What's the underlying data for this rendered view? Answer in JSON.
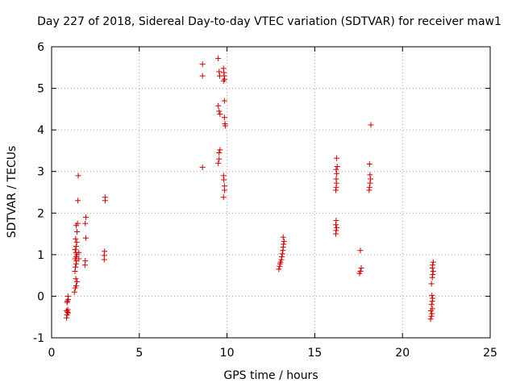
{
  "chart_data": {
    "type": "scatter",
    "title": "Day 227 of 2018, Sidereal Day-to-day VTEC variation (SDTVAR) for receiver maw1",
    "xlabel": "GPS time / hours",
    "ylabel": "SDTVAR / TECUs",
    "xlim": [
      0,
      25
    ],
    "ylim": [
      -1,
      6
    ],
    "xticks": [
      0,
      5,
      10,
      15,
      20,
      25
    ],
    "yticks": [
      -1,
      0,
      1,
      2,
      3,
      4,
      5,
      6
    ],
    "grid": true,
    "marker": "+",
    "series_color": "#d00000",
    "series": [
      {
        "name": "SDTVAR",
        "points": [
          [
            0.85,
            -0.52
          ],
          [
            0.88,
            -0.45
          ],
          [
            0.9,
            -0.38
          ],
          [
            0.92,
            -0.32
          ],
          [
            0.86,
            -0.35
          ],
          [
            0.95,
            -0.4
          ],
          [
            0.9,
            -0.12
          ],
          [
            0.95,
            -0.08
          ],
          [
            0.88,
            -0.15
          ],
          [
            0.93,
            0.0
          ],
          [
            1.3,
            0.1
          ],
          [
            1.35,
            0.2
          ],
          [
            1.4,
            0.25
          ],
          [
            1.45,
            0.35
          ],
          [
            1.38,
            0.42
          ],
          [
            1.33,
            0.6
          ],
          [
            1.36,
            0.7
          ],
          [
            1.4,
            0.78
          ],
          [
            1.42,
            0.85
          ],
          [
            1.35,
            0.9
          ],
          [
            1.4,
            0.95
          ],
          [
            1.44,
            1.0
          ],
          [
            1.38,
            1.05
          ],
          [
            1.34,
            1.12
          ],
          [
            1.4,
            1.2
          ],
          [
            1.43,
            1.3
          ],
          [
            1.37,
            1.38
          ],
          [
            1.45,
            1.55
          ],
          [
            1.4,
            1.7
          ],
          [
            1.48,
            1.75
          ],
          [
            1.5,
            2.3
          ],
          [
            1.52,
            2.9
          ],
          [
            1.55,
            0.9
          ],
          [
            1.55,
            1.05
          ],
          [
            1.9,
            0.75
          ],
          [
            1.92,
            0.85
          ],
          [
            1.95,
            1.4
          ],
          [
            1.92,
            1.75
          ],
          [
            1.95,
            1.9
          ],
          [
            3.0,
            0.88
          ],
          [
            3.0,
            0.98
          ],
          [
            3.02,
            1.08
          ],
          [
            3.05,
            2.3
          ],
          [
            3.05,
            2.38
          ],
          [
            8.6,
            3.1
          ],
          [
            8.6,
            5.3
          ],
          [
            8.6,
            5.58
          ],
          [
            9.5,
            5.72
          ],
          [
            9.55,
            5.4
          ],
          [
            9.58,
            5.3
          ],
          [
            9.5,
            4.58
          ],
          [
            9.55,
            4.45
          ],
          [
            9.6,
            4.38
          ],
          [
            9.5,
            3.2
          ],
          [
            9.55,
            3.3
          ],
          [
            9.55,
            3.45
          ],
          [
            9.6,
            3.52
          ],
          [
            9.8,
            5.48
          ],
          [
            9.82,
            5.38
          ],
          [
            9.84,
            5.3
          ],
          [
            9.86,
            5.22
          ],
          [
            9.8,
            5.18
          ],
          [
            9.85,
            4.7
          ],
          [
            9.85,
            4.3
          ],
          [
            9.88,
            4.15
          ],
          [
            9.9,
            4.1
          ],
          [
            9.8,
            2.9
          ],
          [
            9.82,
            2.8
          ],
          [
            9.85,
            2.65
          ],
          [
            9.86,
            2.55
          ],
          [
            9.8,
            2.38
          ],
          [
            12.95,
            0.65
          ],
          [
            13.0,
            0.72
          ],
          [
            13.02,
            0.78
          ],
          [
            13.05,
            0.82
          ],
          [
            13.1,
            0.88
          ],
          [
            13.12,
            0.95
          ],
          [
            13.15,
            1.02
          ],
          [
            13.18,
            1.1
          ],
          [
            13.2,
            1.18
          ],
          [
            13.22,
            1.25
          ],
          [
            13.25,
            1.32
          ],
          [
            13.2,
            1.42
          ],
          [
            16.2,
            1.5
          ],
          [
            16.22,
            1.58
          ],
          [
            16.25,
            1.65
          ],
          [
            16.2,
            1.72
          ],
          [
            16.22,
            1.82
          ],
          [
            16.2,
            2.55
          ],
          [
            16.22,
            2.62
          ],
          [
            16.24,
            2.72
          ],
          [
            16.22,
            2.82
          ],
          [
            16.25,
            2.95
          ],
          [
            16.22,
            3.05
          ],
          [
            16.28,
            3.12
          ],
          [
            16.25,
            3.32
          ],
          [
            17.55,
            0.55
          ],
          [
            17.6,
            0.6
          ],
          [
            17.65,
            0.68
          ],
          [
            17.6,
            1.1
          ],
          [
            18.1,
            2.55
          ],
          [
            18.12,
            2.62
          ],
          [
            18.15,
            2.72
          ],
          [
            18.18,
            2.82
          ],
          [
            18.15,
            2.92
          ],
          [
            18.12,
            3.18
          ],
          [
            18.2,
            4.12
          ],
          [
            21.6,
            -0.55
          ],
          [
            21.65,
            -0.48
          ],
          [
            21.68,
            -0.42
          ],
          [
            21.62,
            -0.35
          ],
          [
            21.7,
            -0.3
          ],
          [
            21.65,
            -0.2
          ],
          [
            21.7,
            -0.12
          ],
          [
            21.72,
            -0.05
          ],
          [
            21.68,
            0.02
          ],
          [
            21.65,
            0.3
          ],
          [
            21.7,
            0.45
          ],
          [
            21.72,
            0.52
          ],
          [
            21.75,
            0.6
          ],
          [
            21.7,
            0.68
          ],
          [
            21.72,
            0.75
          ],
          [
            21.75,
            0.82
          ]
        ]
      }
    ]
  }
}
